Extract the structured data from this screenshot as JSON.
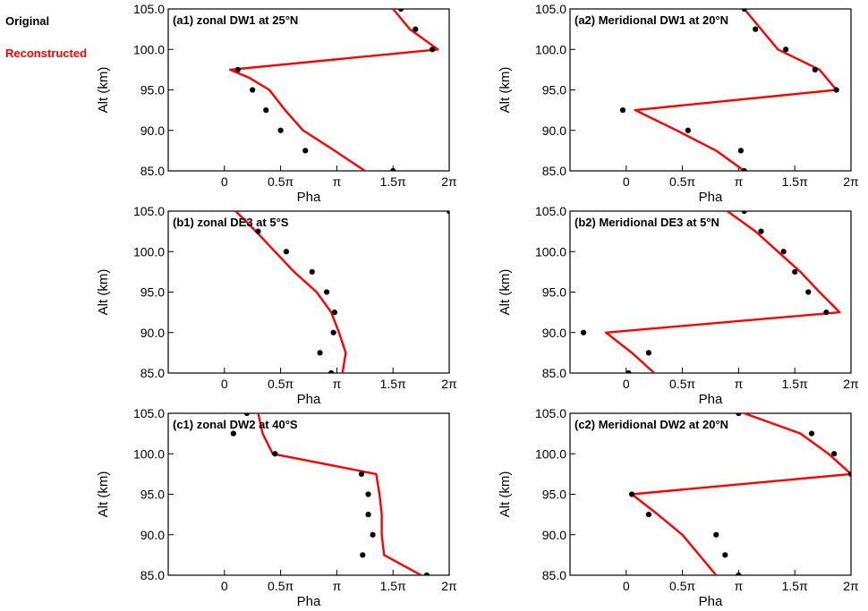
{
  "legend": {
    "original": "Original",
    "reconstructed": "Reconstructed",
    "reconstructed_color": "#ff0000",
    "original_color": "#000000"
  },
  "chart_data": [
    {
      "type": "line",
      "title": "(a1) zonal DW1 at 25°N",
      "xlabel": "Pha",
      "ylabel": "Alt (km)",
      "xlim": [
        -0.5,
        2.0
      ],
      "ylim": [
        85,
        105
      ],
      "x_unit": "π",
      "xticks": [
        0,
        0.5,
        1.0,
        1.5,
        2.0
      ],
      "xtick_labels": [
        "0",
        "0.5π",
        "π",
        "1.5π",
        "2π"
      ],
      "yticks": [
        85,
        90,
        95,
        100,
        105
      ],
      "ytick_labels": [
        "85.0",
        "90.0",
        "95.0",
        "100.0",
        "105.0"
      ],
      "series": [
        {
          "name": "Original",
          "style": "points",
          "x": [
            1.5,
            0.72,
            0.5,
            0.37,
            0.25,
            0.12,
            1.85,
            1.7,
            1.57
          ],
          "y": [
            85,
            87.5,
            90,
            92.5,
            95,
            97.5,
            100,
            102.5,
            105
          ]
        },
        {
          "name": "Reconstructed",
          "style": "line",
          "x": [
            1.25,
            0.98,
            0.7,
            0.54,
            0.4,
            0.22,
            0.05,
            1.9,
            1.65,
            1.5
          ],
          "y": [
            85,
            87.5,
            90,
            92.5,
            95,
            96.5,
            97.5,
            100,
            102.5,
            105
          ]
        }
      ]
    },
    {
      "type": "line",
      "title": "(a2) Meridional DW1 at 20°N",
      "xlabel": "Pha",
      "ylabel": "Alt (km)",
      "xlim": [
        -0.5,
        2.0
      ],
      "ylim": [
        85,
        105
      ],
      "x_unit": "π",
      "xticks": [
        0,
        0.5,
        1.0,
        1.5,
        2.0
      ],
      "xtick_labels": [
        "0",
        "0.5π",
        "π",
        "1.5π",
        "2π"
      ],
      "yticks": [
        85,
        90,
        95,
        100,
        105
      ],
      "ytick_labels": [
        "85.0",
        "90.0",
        "95.0",
        "100.0",
        "105.0"
      ],
      "series": [
        {
          "name": "Original",
          "style": "points",
          "x": [
            1.05,
            1.02,
            0.55,
            -0.03,
            1.87,
            1.68,
            1.42,
            1.15,
            1.05
          ],
          "y": [
            85,
            87.5,
            90,
            92.5,
            95,
            97.5,
            100,
            102.5,
            105
          ]
        },
        {
          "name": "Reconstructed",
          "style": "line",
          "x": [
            1.05,
            0.8,
            0.45,
            0.08,
            1.87,
            1.72,
            1.35,
            1.2,
            1.05
          ],
          "y": [
            85,
            87.5,
            90,
            92.5,
            95,
            97.5,
            100,
            102.5,
            105
          ]
        }
      ]
    },
    {
      "type": "line",
      "title": "(b1) zonal DE3 at 5°S",
      "xlabel": "Pha",
      "ylabel": "Alt (km)",
      "xlim": [
        -0.5,
        2.0
      ],
      "ylim": [
        85,
        105
      ],
      "x_unit": "π",
      "xticks": [
        0,
        0.5,
        1.0,
        1.5,
        2.0
      ],
      "xtick_labels": [
        "0",
        "0.5π",
        "π",
        "1.5π",
        "2π"
      ],
      "yticks": [
        85,
        90,
        95,
        100,
        105
      ],
      "ytick_labels": [
        "85.0",
        "90.0",
        "95.0",
        "100.0",
        "105.0"
      ],
      "series": [
        {
          "name": "Original",
          "style": "points",
          "x": [
            0.95,
            0.85,
            0.97,
            0.98,
            0.91,
            0.78,
            0.55,
            0.3,
            2.0
          ],
          "y": [
            85,
            87.5,
            90,
            92.5,
            95,
            97.5,
            100,
            102.5,
            105
          ]
        },
        {
          "name": "Reconstructed",
          "style": "line",
          "x": [
            1.05,
            1.08,
            1.02,
            0.95,
            0.82,
            0.62,
            0.45,
            0.28,
            0.1
          ],
          "y": [
            85,
            87.5,
            90,
            92.5,
            95,
            97.5,
            100,
            102.5,
            105
          ]
        }
      ]
    },
    {
      "type": "line",
      "title": "(b2) Meridional DE3 at 5°N",
      "xlabel": "Pha",
      "ylabel": "Alt (km)",
      "xlim": [
        -0.5,
        2.0
      ],
      "ylim": [
        85,
        105
      ],
      "x_unit": "π",
      "xticks": [
        0,
        0.5,
        1.0,
        1.5,
        2.0
      ],
      "xtick_labels": [
        "0",
        "0.5π",
        "π",
        "1.5π",
        "2π"
      ],
      "yticks": [
        85,
        90,
        95,
        100,
        105
      ],
      "ytick_labels": [
        "85.0",
        "90.0",
        "95.0",
        "100.0",
        "105.0"
      ],
      "series": [
        {
          "name": "Original",
          "style": "points",
          "x": [
            0.02,
            0.2,
            -0.38,
            1.78,
            1.62,
            1.5,
            1.4,
            1.2,
            1.05
          ],
          "y": [
            85,
            87.5,
            90,
            92.5,
            95,
            97.5,
            100,
            102.5,
            105
          ]
        },
        {
          "name": "Reconstructed",
          "style": "line",
          "x": [
            0.25,
            0.05,
            -0.18,
            1.9,
            1.72,
            1.55,
            1.35,
            1.15,
            0.9
          ],
          "y": [
            85,
            87.5,
            90,
            92.5,
            95,
            97.5,
            100,
            102.5,
            105
          ]
        }
      ]
    },
    {
      "type": "line",
      "title": "(c1) zonal DW2 at 40°S",
      "xlabel": "Pha",
      "ylabel": "Alt (km)",
      "xlim": [
        -0.5,
        2.0
      ],
      "ylim": [
        85,
        105
      ],
      "x_unit": "π",
      "xticks": [
        0,
        0.5,
        1.0,
        1.5,
        2.0
      ],
      "xtick_labels": [
        "0",
        "0.5π",
        "π",
        "1.5π",
        "2π"
      ],
      "yticks": [
        85,
        90,
        95,
        100,
        105
      ],
      "ytick_labels": [
        "85.0",
        "90.0",
        "95.0",
        "100.0",
        "105.0"
      ],
      "series": [
        {
          "name": "Original",
          "style": "points",
          "x": [
            1.8,
            1.23,
            1.32,
            1.28,
            1.28,
            1.22,
            0.45,
            0.08,
            0.2
          ],
          "y": [
            85,
            87.5,
            90,
            92.5,
            95,
            97.5,
            100,
            102.5,
            105
          ]
        },
        {
          "name": "Reconstructed",
          "style": "line",
          "x": [
            1.75,
            1.42,
            1.4,
            1.4,
            1.38,
            1.35,
            0.43,
            0.34,
            0.3
          ],
          "y": [
            85,
            87.5,
            90,
            92.5,
            95,
            97.5,
            100,
            102.5,
            105
          ]
        }
      ]
    },
    {
      "type": "line",
      "title": "(c2) Meridional DW2 at 20°N",
      "xlabel": "Pha",
      "ylabel": "Alt (km)",
      "xlim": [
        -0.5,
        2.0
      ],
      "ylim": [
        85,
        105
      ],
      "x_unit": "π",
      "xticks": [
        0,
        0.5,
        1.0,
        1.5,
        2.0
      ],
      "xtick_labels": [
        "0",
        "0.5π",
        "π",
        "1.5π",
        "2π"
      ],
      "yticks": [
        85,
        90,
        95,
        100,
        105
      ],
      "ytick_labels": [
        "85.0",
        "90.0",
        "95.0",
        "100.0",
        "105.0"
      ],
      "series": [
        {
          "name": "Original",
          "style": "points",
          "x": [
            1.0,
            0.88,
            0.8,
            0.2,
            0.05,
            2.0,
            1.85,
            1.65,
            1.0
          ],
          "y": [
            85,
            87.5,
            90,
            92.5,
            95,
            97.5,
            100,
            102.5,
            105
          ]
        },
        {
          "name": "Reconstructed",
          "style": "line",
          "x": [
            0.8,
            0.65,
            0.5,
            0.28,
            0.05,
            2.0,
            1.8,
            1.55,
            1.05
          ],
          "y": [
            85,
            87.5,
            90,
            92.5,
            95,
            97.5,
            100,
            102.5,
            105
          ]
        }
      ]
    }
  ]
}
